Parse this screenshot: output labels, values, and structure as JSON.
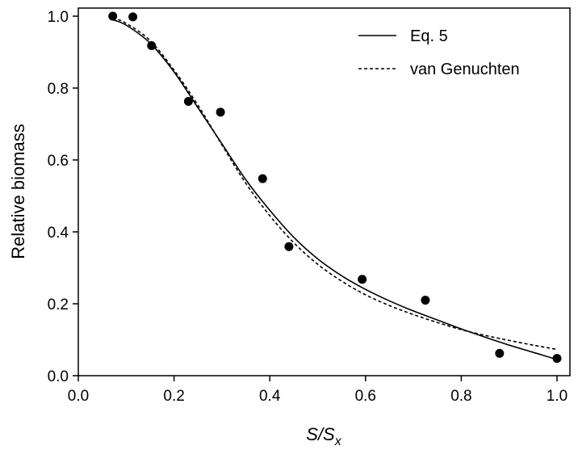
{
  "chart_data": {
    "type": "scatter",
    "xlabel": "S/S",
    "xlabel_sub": "x",
    "ylabel": "Relative biomass",
    "xlim": [
      0.0,
      1.0
    ],
    "ylim": [
      0.0,
      1.0
    ],
    "xticks": [
      "0.0",
      "0.2",
      "0.4",
      "0.6",
      "0.8",
      "1.0"
    ],
    "yticks": [
      "0.0",
      "0.2",
      "0.4",
      "0.6",
      "0.8",
      "1.0"
    ],
    "grid": false,
    "legend_position": "top-right",
    "points": {
      "x": [
        0.072,
        0.114,
        0.153,
        0.23,
        0.297,
        0.385,
        0.44,
        0.593,
        0.725,
        0.88,
        1.0
      ],
      "y": [
        1.0,
        0.998,
        0.918,
        0.763,
        0.733,
        0.548,
        0.359,
        0.268,
        0.21,
        0.062,
        0.048
      ]
    },
    "series": [
      {
        "name": "Eq. 5",
        "style": "solid",
        "x": [
          0.072,
          0.1,
          0.15,
          0.2,
          0.25,
          0.3,
          0.35,
          0.4,
          0.45,
          0.5,
          0.55,
          0.6,
          0.65,
          0.7,
          0.75,
          0.8,
          0.85,
          0.9,
          0.95,
          1.0
        ],
        "y": [
          0.99,
          0.975,
          0.925,
          0.845,
          0.745,
          0.645,
          0.545,
          0.46,
          0.385,
          0.325,
          0.278,
          0.24,
          0.208,
          0.18,
          0.155,
          0.13,
          0.107,
          0.085,
          0.065,
          0.045
        ]
      },
      {
        "name": "van Genuchten",
        "style": "dashed",
        "x": [
          0.072,
          0.1,
          0.15,
          0.2,
          0.25,
          0.3,
          0.35,
          0.4,
          0.45,
          0.5,
          0.55,
          0.6,
          0.65,
          0.7,
          0.75,
          0.8,
          0.85,
          0.9,
          0.95,
          1.0
        ],
        "y": [
          0.995,
          0.98,
          0.932,
          0.85,
          0.752,
          0.642,
          0.535,
          0.445,
          0.37,
          0.31,
          0.263,
          0.225,
          0.195,
          0.17,
          0.148,
          0.128,
          0.112,
          0.098,
          0.085,
          0.073
        ]
      }
    ]
  }
}
